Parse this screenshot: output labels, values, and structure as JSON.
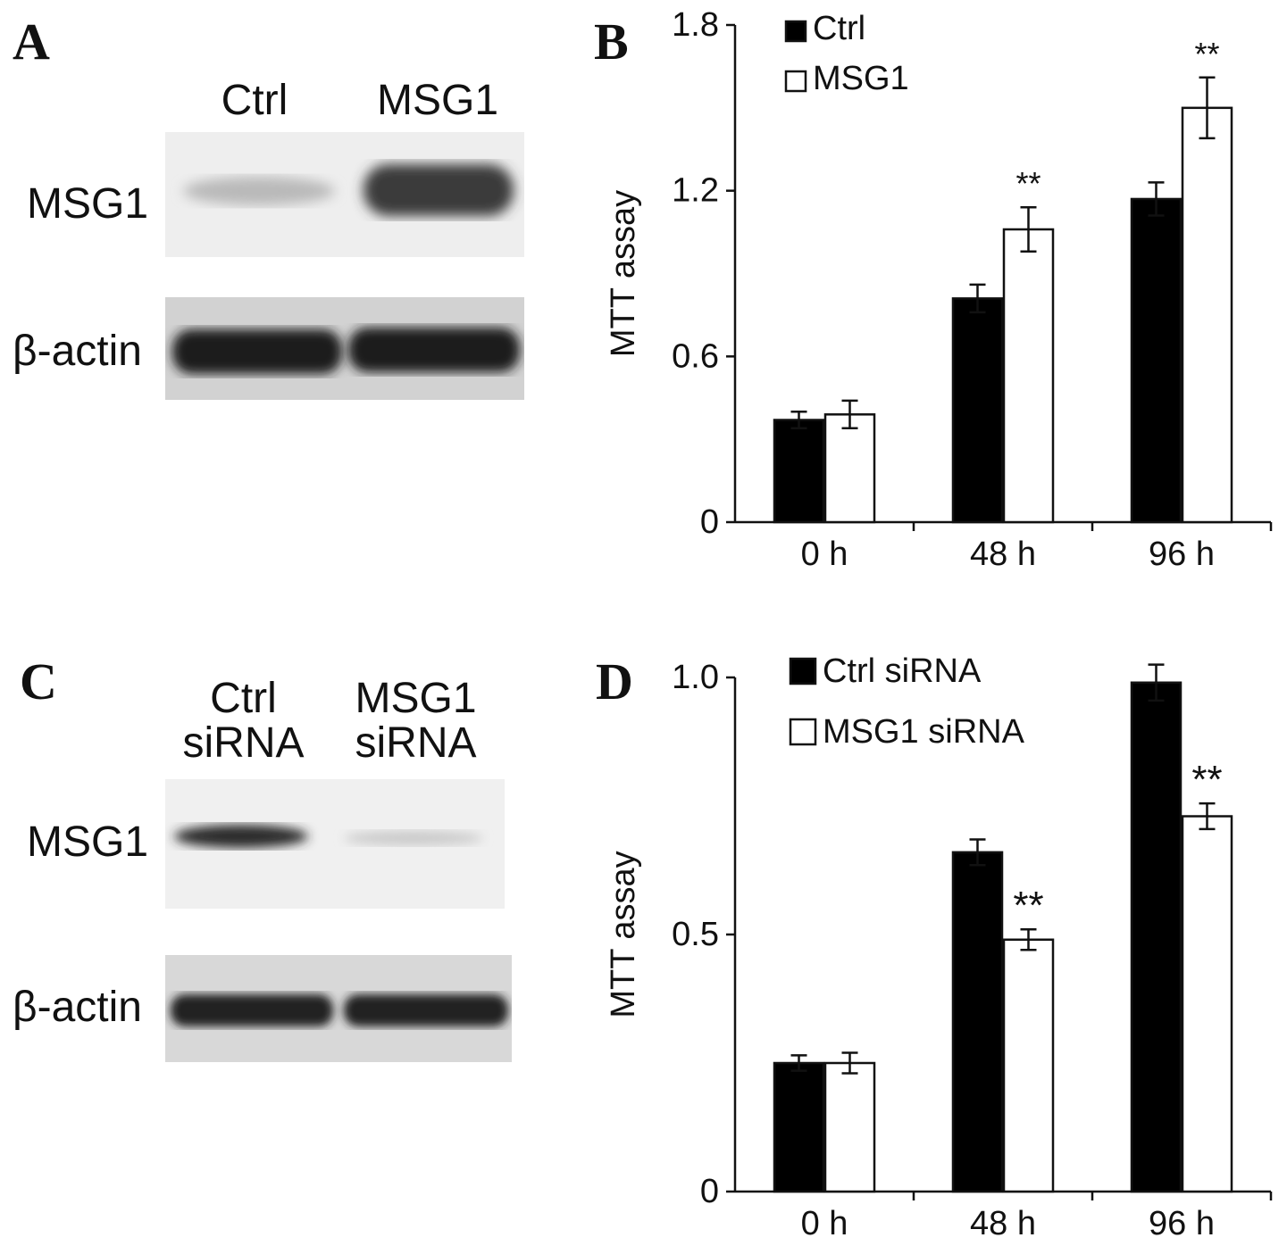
{
  "panels": {
    "A": {
      "letter": "A",
      "lanes": [
        "Ctrl",
        "MSG1"
      ],
      "rows": [
        "MSG1",
        "β-actin"
      ]
    },
    "C": {
      "letter": "C",
      "lanes": [
        [
          "Ctrl",
          "siRNA"
        ],
        [
          "MSG1",
          "siRNA"
        ]
      ],
      "rows": [
        "MSG1",
        "β-actin"
      ]
    },
    "B": {
      "letter": "B"
    },
    "D": {
      "letter": "D"
    }
  },
  "chart_data": [
    {
      "panel": "B",
      "type": "bar",
      "ylabel": "MTT assay",
      "xlabel": "",
      "ylim": [
        0,
        1.8
      ],
      "yticks": [
        "0",
        "0.6",
        "1.2",
        "1.8"
      ],
      "categories": [
        "0 h",
        "48 h",
        "96 h"
      ],
      "legend_position": "top-left",
      "series": [
        {
          "name": "Ctrl",
          "fill": "#000000",
          "values": [
            0.37,
            0.81,
            1.17
          ],
          "errors": [
            0.03,
            0.05,
            0.06
          ]
        },
        {
          "name": "MSG1",
          "fill": "#ffffff",
          "values": [
            0.39,
            1.06,
            1.5
          ],
          "errors": [
            0.05,
            0.08,
            0.11
          ]
        }
      ],
      "annotations": [
        {
          "text": "**",
          "category": "48 h",
          "series": "MSG1"
        },
        {
          "text": "**",
          "category": "96 h",
          "series": "MSG1"
        }
      ]
    },
    {
      "panel": "D",
      "type": "bar",
      "ylabel": "MTT assay",
      "xlabel": "",
      "ylim": [
        0,
        1.0
      ],
      "yticks": [
        "0",
        "0.5",
        "1.0"
      ],
      "categories": [
        "0 h",
        "48 h",
        "96 h"
      ],
      "legend_position": "top-left",
      "series": [
        {
          "name": "Ctrl siRNA",
          "fill": "#000000",
          "values": [
            0.25,
            0.66,
            0.99
          ],
          "errors": [
            0.015,
            0.025,
            0.035
          ]
        },
        {
          "name": "MSG1 siRNA",
          "fill": "#ffffff",
          "values": [
            0.25,
            0.49,
            0.73
          ],
          "errors": [
            0.02,
            0.02,
            0.025
          ]
        }
      ],
      "annotations": [
        {
          "text": "**",
          "category": "48 h",
          "series": "MSG1 siRNA"
        },
        {
          "text": "**",
          "category": "96 h",
          "series": "MSG1 siRNA"
        }
      ]
    }
  ]
}
